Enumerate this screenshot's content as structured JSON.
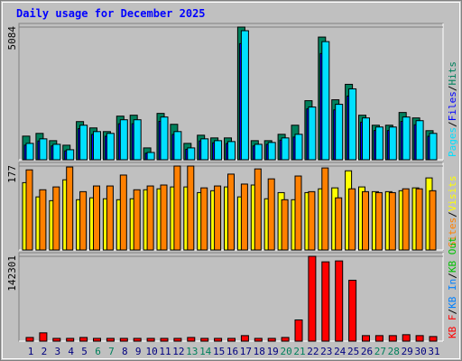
{
  "chart_data": [
    {
      "type": "bar",
      "title": "Daily usage for December 2025",
      "ylim": [
        0,
        5084
      ],
      "yticks": [
        5084
      ],
      "series": [
        {
          "name": "Pages",
          "color": "#00e0ff",
          "values": [
            627,
            801,
            592,
            383,
            1323,
            1079,
            1010,
            1532,
            1532,
            279,
            1637,
            1079,
            453,
            801,
            731,
            696,
            4945,
            592,
            662,
            836,
            975,
            2020,
            4527,
            2124,
            2716,
            1602,
            1254,
            1254,
            1637,
            1497,
            1010
          ]
        },
        {
          "name": "Files",
          "color": "#0000ff",
          "values": [
            560,
            720,
            530,
            340,
            1190,
            970,
            900,
            1380,
            1380,
            250,
            1470,
            970,
            400,
            720,
            650,
            620,
            4450,
            530,
            590,
            750,
            870,
            1950,
            4070,
            1910,
            2440,
            1440,
            1120,
            1120,
            1470,
            1340,
            900
          ]
        },
        {
          "name": "Hits",
          "color": "#00805c",
          "values": [
            905,
            1010,
            731,
            557,
            1462,
            1219,
            1079,
            1671,
            1706,
            453,
            1776,
            1358,
            627,
            940,
            836,
            836,
            5084,
            731,
            731,
            975,
            1323,
            2263,
            4701,
            2298,
            2890,
            1706,
            1323,
            1323,
            1811,
            1602,
            1114
          ]
        }
      ]
    },
    {
      "type": "bar",
      "ylim": [
        0,
        177
      ],
      "yticks": [
        177
      ],
      "series": [
        {
          "name": "Sites",
          "color": "#ff8000",
          "values": [
            169,
            127,
            133,
            175,
            123,
            135,
            135,
            158,
            127,
            135,
            137,
            177,
            177,
            131,
            135,
            160,
            139,
            171,
            150,
            106,
            156,
            123,
            173,
            110,
            129,
            123,
            121,
            121,
            129,
            129,
            125
          ]
        },
        {
          "name": "Visits",
          "color": "#ffff00",
          "values": [
            142,
            112,
            104,
            148,
            106,
            110,
            108,
            106,
            108,
            127,
            129,
            133,
            133,
            121,
            125,
            133,
            112,
            137,
            108,
            121,
            106,
            121,
            129,
            131,
            167,
            133,
            123,
            123,
            125,
            131,
            152
          ]
        }
      ]
    },
    {
      "type": "bar",
      "ylim": [
        0,
        142301
      ],
      "yticks": [
        142301
      ],
      "categories": [
        "1",
        "2",
        "3",
        "4",
        "5",
        "6",
        "7",
        "8",
        "9",
        "10",
        "11",
        "12",
        "13",
        "14",
        "15",
        "16",
        "17",
        "18",
        "19",
        "20",
        "21",
        "22",
        "23",
        "24",
        "25",
        "26",
        "27",
        "28",
        "29",
        "30",
        "31"
      ],
      "category_colors": [
        "#000080",
        "#000080",
        "#000080",
        "#000080",
        "#000080",
        "#00805c",
        "#00805c",
        "#000080",
        "#000080",
        "#000080",
        "#000080",
        "#000080",
        "#00805c",
        "#00805c",
        "#000080",
        "#000080",
        "#000080",
        "#000080",
        "#000080",
        "#00805c",
        "#00805c",
        "#000080",
        "#000080",
        "#000080",
        "#000080",
        "#000080",
        "#00805c",
        "#00805c",
        "#000080",
        "#000080",
        "#000080"
      ],
      "series": [
        {
          "name": "KB F",
          "color": "#ff0000",
          "values": [
            6187,
            13921,
            4640,
            4640,
            6187,
            4640,
            4640,
            4640,
            4640,
            4640,
            4640,
            4640,
            6187,
            4640,
            4640,
            4640,
            9280,
            4640,
            4640,
            6187,
            35575,
            142301,
            133020,
            134567,
            102086,
            9280,
            9280,
            9280,
            10827,
            9280,
            7733
          ]
        },
        {
          "name": "KB In",
          "color": "#0080ff",
          "values": [
            0,
            0,
            0,
            0,
            0,
            0,
            0,
            0,
            0,
            0,
            0,
            0,
            0,
            0,
            0,
            0,
            0,
            0,
            0,
            0,
            0,
            0,
            0,
            0,
            0,
            0,
            0,
            0,
            0,
            0,
            0
          ]
        },
        {
          "name": "KB Out",
          "color": "#00c000",
          "values": [
            0,
            0,
            0,
            0,
            0,
            0,
            0,
            0,
            0,
            0,
            0,
            0,
            0,
            0,
            0,
            0,
            0,
            0,
            0,
            0,
            0,
            0,
            0,
            0,
            0,
            0,
            0,
            0,
            0,
            0,
            0
          ]
        }
      ]
    }
  ],
  "legend_separator": "/"
}
